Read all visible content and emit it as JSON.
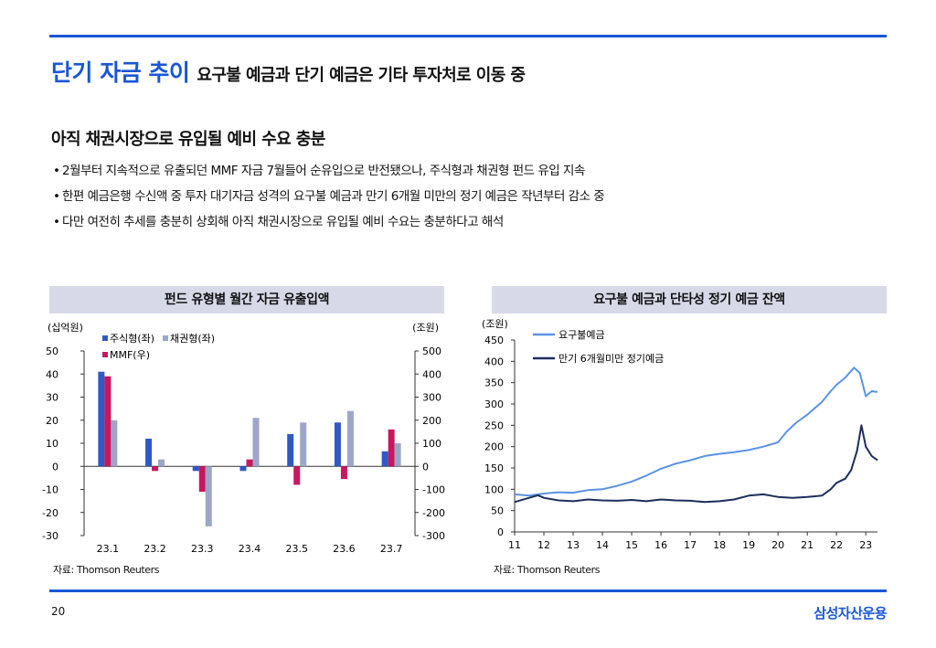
{
  "title": {
    "main": "단기 자금 추이",
    "sub": "요구불 예금과 단기 예금은 기타 투자처로 이동 중"
  },
  "headline": "아직 채권시장으로 유입될 예비 수요 충분",
  "bullets": [
    "2월부터 지속적으로 유출되던 MMF 자금 7월들어 순유입으로 반전됐으나, 주식형과 채권형 펀드 유입 지속",
    "한편 예금은행 수신액 중 투자 대기자금 성격의 요구불 예금과 만기 6개월 미만의 정기 예금은 작년부터 감소 중",
    "다만 여전히 추세를 충분히 상회해 아직 채권시장으로 유입될 예비 수요는 충분하다고 해석"
  ],
  "bullet_mark": "•",
  "colors": {
    "accent": "#1a56d6",
    "stock": "#2e59c6",
    "bond": "#9ba7c9",
    "mmf": "#c8175d",
    "demand": "#5a93e3",
    "term": "#1c2e5c"
  },
  "chart_data": [
    {
      "type": "bar",
      "title": "펀드 유형별 월간 자금 유출입액",
      "left_unit": "(십억원)",
      "right_unit": "(조원)",
      "categories": [
        "23.1",
        "23.2",
        "23.3",
        "23.4",
        "23.5",
        "23.6",
        "23.7"
      ],
      "ylim": [
        -30,
        50
      ],
      "yticks": [
        -30,
        -20,
        -10,
        0,
        10,
        20,
        30,
        40,
        50
      ],
      "y2lim": [
        -300,
        500
      ],
      "y2ticks": [
        -300,
        -200,
        -100,
        0,
        100,
        200,
        300,
        400,
        500
      ],
      "series": [
        {
          "name": "주식형(좌)",
          "axis": "left",
          "values": [
            41,
            12,
            -2,
            -2,
            14,
            19,
            6.5
          ]
        },
        {
          "name": "채권형(좌)",
          "axis": "left",
          "values": [
            20,
            3,
            -26,
            21,
            19,
            24,
            10
          ]
        },
        {
          "name": "MMF(우)",
          "axis": "right",
          "values": [
            390,
            -20,
            -110,
            30,
            -80,
            -55,
            160
          ]
        }
      ],
      "source": "자료: Thomson Reuters"
    },
    {
      "type": "line",
      "title": "요구불 예금과 단타성 정기 예금 잔액",
      "unit": "(조원)",
      "ylim": [
        0,
        450
      ],
      "yticks": [
        0,
        50,
        100,
        150,
        200,
        250,
        300,
        350,
        400,
        450
      ],
      "x_ticks": [
        "11",
        "12",
        "13",
        "14",
        "15",
        "16",
        "17",
        "18",
        "19",
        "20",
        "21",
        "22",
        "23"
      ],
      "x_range": [
        2011,
        2023.4
      ],
      "series": [
        {
          "name": "요구불예금",
          "points": [
            [
              2011,
              88
            ],
            [
              2011.5,
              85
            ],
            [
              2012,
              90
            ],
            [
              2012.5,
              93
            ],
            [
              2013,
              92
            ],
            [
              2013.5,
              98
            ],
            [
              2014,
              100
            ],
            [
              2014.5,
              108
            ],
            [
              2015,
              118
            ],
            [
              2015.5,
              132
            ],
            [
              2016,
              148
            ],
            [
              2016.5,
              160
            ],
            [
              2017,
              168
            ],
            [
              2017.5,
              178
            ],
            [
              2018,
              183
            ],
            [
              2018.5,
              187
            ],
            [
              2019,
              192
            ],
            [
              2019.5,
              200
            ],
            [
              2020,
              210
            ],
            [
              2020.3,
              235
            ],
            [
              2020.6,
              255
            ],
            [
              2021,
              275
            ],
            [
              2021.5,
              305
            ],
            [
              2021.8,
              330
            ],
            [
              2022,
              345
            ],
            [
              2022.3,
              362
            ],
            [
              2022.6,
              385
            ],
            [
              2022.8,
              372
            ],
            [
              2023,
              318
            ],
            [
              2023.2,
              330
            ],
            [
              2023.4,
              328
            ]
          ]
        },
        {
          "name": "만기 6개월미만 정기예금",
          "points": [
            [
              2011,
              70
            ],
            [
              2011.4,
              78
            ],
            [
              2011.8,
              86
            ],
            [
              2012,
              80
            ],
            [
              2012.5,
              74
            ],
            [
              2013,
              72
            ],
            [
              2013.5,
              76
            ],
            [
              2014,
              74
            ],
            [
              2014.5,
              73
            ],
            [
              2015,
              75
            ],
            [
              2015.5,
              72
            ],
            [
              2016,
              76
            ],
            [
              2016.5,
              74
            ],
            [
              2017,
              73
            ],
            [
              2017.5,
              70
            ],
            [
              2018,
              72
            ],
            [
              2018.5,
              76
            ],
            [
              2019,
              85
            ],
            [
              2019.5,
              88
            ],
            [
              2020,
              82
            ],
            [
              2020.5,
              80
            ],
            [
              2021,
              82
            ],
            [
              2021.5,
              85
            ],
            [
              2021.8,
              100
            ],
            [
              2022,
              115
            ],
            [
              2022.3,
              125
            ],
            [
              2022.5,
              145
            ],
            [
              2022.7,
              190
            ],
            [
              2022.85,
              250
            ],
            [
              2023,
              200
            ],
            [
              2023.2,
              178
            ],
            [
              2023.4,
              168
            ]
          ]
        }
      ],
      "source": "자료: Thomson Reuters"
    }
  ],
  "page_number": "20",
  "brand": "삼성자산운용"
}
